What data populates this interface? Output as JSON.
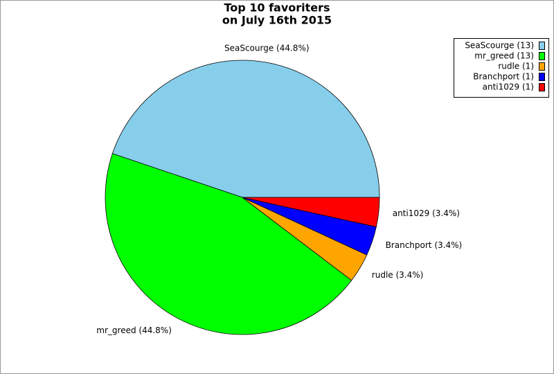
{
  "chart_data": {
    "type": "pie",
    "title": "Top 10 favoriters",
    "subtitle": "on July 16th 2015",
    "categories": [
      "SeaScourge",
      "mr_greed",
      "rudle",
      "Branchport",
      "anti1029"
    ],
    "values": [
      13,
      13,
      1,
      1,
      1
    ],
    "value_labels": [
      "SeaScourge (13)",
      "mr_greed (13)",
      "rudle (1)",
      "Branchport (1)",
      "anti1029 (1)"
    ],
    "slice_labels": [
      "SeaScourge (44.8%)",
      "mr_greed (44.8%)",
      "rudle (3.4%)",
      "Branchport (3.4%)",
      "anti1029 (3.4%)"
    ],
    "colors": [
      "#87ceeb",
      "#00ff00",
      "#ffa500",
      "#0000ff",
      "#ff0000"
    ],
    "legend": "upper right"
  }
}
